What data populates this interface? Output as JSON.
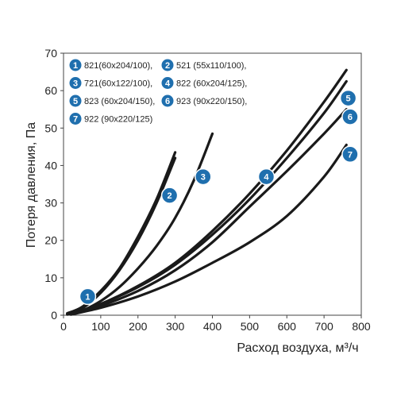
{
  "chart_data": {
    "type": "line",
    "title": "",
    "xlabel": "Расход воздуха, м³/ч",
    "ylabel": "Потеря давления, Па",
    "xlim": [
      0,
      800
    ],
    "ylim": [
      0,
      70
    ],
    "xticks": [
      0,
      100,
      200,
      300,
      400,
      500,
      600,
      700,
      800
    ],
    "yticks": [
      0,
      10,
      20,
      30,
      40,
      50,
      60,
      70
    ],
    "grid": false,
    "legend_position": "top-left",
    "line_color": "#1a1a1a",
    "badge_color": "#1f6fae",
    "series": [
      {
        "id": "1",
        "name": "821(60x204/100),",
        "x": [
          10,
          50,
          100,
          150,
          200,
          250,
          300
        ],
        "y": [
          0.5,
          2.2,
          6.5,
          12.5,
          21,
          31,
          43.5
        ]
      },
      {
        "id": "2",
        "name": "521 (55x110/100),",
        "x": [
          10,
          50,
          100,
          150,
          200,
          250,
          300
        ],
        "y": [
          0.3,
          1.8,
          6,
          12,
          20,
          30,
          42
        ]
      },
      {
        "id": "3",
        "name": "721(60x122/100),",
        "x": [
          10,
          50,
          100,
          150,
          200,
          250,
          300,
          350,
          400
        ],
        "y": [
          0.2,
          1.2,
          3.8,
          7.5,
          12.5,
          18.5,
          26,
          36,
          48.5
        ]
      },
      {
        "id": "4",
        "name": "822 (60x204/125),",
        "x": [
          20,
          100,
          200,
          300,
          400,
          500,
          600,
          700,
          760
        ],
        "y": [
          0.3,
          3,
          7.5,
          13.5,
          21.5,
          31,
          42,
          54,
          62.5
        ]
      },
      {
        "id": "5",
        "name": "823 (60x204/150),",
        "x": [
          20,
          100,
          200,
          300,
          400,
          500,
          600,
          700,
          760
        ],
        "y": [
          0.3,
          3,
          7.8,
          14,
          22.5,
          32.5,
          44,
          57,
          65.5
        ]
      },
      {
        "id": "6",
        "name": "923 (90x220/150),",
        "x": [
          20,
          100,
          200,
          300,
          400,
          500,
          600,
          700,
          760
        ],
        "y": [
          0.2,
          2.5,
          6.5,
          12,
          19.5,
          29,
          38.5,
          48.5,
          55
        ]
      },
      {
        "id": "7",
        "name": "922 (90x220/125)",
        "x": [
          20,
          100,
          200,
          300,
          400,
          500,
          600,
          700,
          760
        ],
        "y": [
          0.2,
          2,
          5,
          9,
          14,
          19.5,
          26.5,
          37,
          45.5
        ]
      }
    ],
    "annotations": [
      {
        "id": "1",
        "x": 65,
        "y": 5
      },
      {
        "id": "2",
        "x": 285,
        "y": 32
      },
      {
        "id": "3",
        "x": 375,
        "y": 37
      },
      {
        "id": "4",
        "x": 545,
        "y": 37
      },
      {
        "id": "5",
        "x": 765,
        "y": 58
      },
      {
        "id": "6",
        "x": 770,
        "y": 53
      },
      {
        "id": "7",
        "x": 770,
        "y": 43
      }
    ]
  }
}
